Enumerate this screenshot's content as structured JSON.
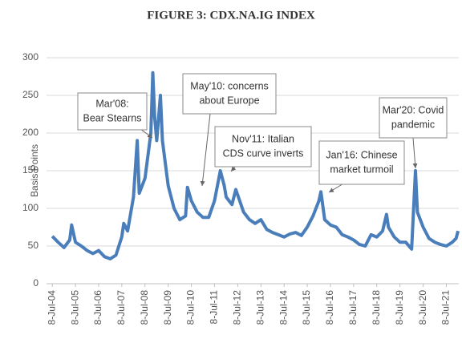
{
  "chart_data": {
    "type": "line",
    "title": "FIGURE 3:  CDX.NA.IG INDEX",
    "y_label": "Basis  Points",
    "x": [
      "2004-07-08",
      "2004-10-08",
      "2005-01-08",
      "2005-04-08",
      "2005-05-08",
      "2005-07-08",
      "2005-10-08",
      "2006-01-08",
      "2006-04-08",
      "2006-07-08",
      "2006-10-08",
      "2007-01-08",
      "2007-04-08",
      "2007-07-08",
      "2007-08-08",
      "2007-10-08",
      "2008-01-08",
      "2008-03-08",
      "2008-04-08",
      "2008-07-08",
      "2008-10-08",
      "2008-11-08",
      "2008-12-08",
      "2009-01-08",
      "2009-03-08",
      "2009-04-08",
      "2009-07-08",
      "2009-10-08",
      "2010-01-08",
      "2010-04-08",
      "2010-05-08",
      "2010-07-08",
      "2010-10-08",
      "2011-01-08",
      "2011-04-08",
      "2011-07-08",
      "2011-10-08",
      "2011-12-08",
      "2012-01-08",
      "2012-04-08",
      "2012-06-08",
      "2012-10-08",
      "2013-01-08",
      "2013-04-08",
      "2013-07-08",
      "2013-10-08",
      "2014-01-08",
      "2014-04-08",
      "2014-07-08",
      "2014-10-08",
      "2015-01-08",
      "2015-04-08",
      "2015-07-08",
      "2015-10-08",
      "2016-01-08",
      "2016-02-08",
      "2016-04-08",
      "2016-07-08",
      "2016-10-08",
      "2017-01-08",
      "2017-04-08",
      "2017-07-08",
      "2017-10-08",
      "2018-01-08",
      "2018-04-08",
      "2018-07-08",
      "2018-10-08",
      "2018-12-08",
      "2019-01-08",
      "2019-04-08",
      "2019-07-08",
      "2019-10-08",
      "2020-01-08",
      "2020-03-08",
      "2020-04-08",
      "2020-07-08",
      "2020-10-08",
      "2021-01-08",
      "2021-04-08",
      "2021-07-08",
      "2021-10-08",
      "2021-12-08",
      "2022-01-08"
    ],
    "series": [
      {
        "name": "CDX.NA.IG",
        "color": "#4a7ebb",
        "values": [
          63,
          55,
          48,
          58,
          78,
          55,
          50,
          44,
          40,
          44,
          36,
          33,
          38,
          62,
          80,
          70,
          115,
          190,
          120,
          140,
          200,
          280,
          220,
          190,
          250,
          190,
          130,
          100,
          85,
          90,
          128,
          110,
          95,
          88,
          88,
          110,
          150,
          130,
          115,
          105,
          125,
          95,
          85,
          80,
          85,
          72,
          68,
          65,
          62,
          66,
          68,
          64,
          75,
          90,
          110,
          122,
          85,
          78,
          75,
          65,
          62,
          58,
          52,
          50,
          65,
          62,
          70,
          92,
          75,
          62,
          55,
          55,
          46,
          150,
          95,
          75,
          60,
          55,
          52,
          50,
          55,
          60,
          70
        ]
      }
    ],
    "xlim": [
      "2004-04-08",
      "2022-01-20"
    ],
    "ylim": [
      0,
      300
    ],
    "yticks": [
      0,
      50,
      100,
      150,
      200,
      250,
      300
    ],
    "xticks": [
      {
        "value": "2004-07-08",
        "label": "8-Jul-04"
      },
      {
        "value": "2005-07-08",
        "label": "8-Jul-05"
      },
      {
        "value": "2006-07-08",
        "label": "8-Jul-06"
      },
      {
        "value": "2007-07-08",
        "label": "8-Jul-07"
      },
      {
        "value": "2008-07-08",
        "label": "8-Jul-08"
      },
      {
        "value": "2009-07-08",
        "label": "8-Jul-09"
      },
      {
        "value": "2010-07-08",
        "label": "8-Jul-10"
      },
      {
        "value": "2011-07-08",
        "label": "8-Jul-11"
      },
      {
        "value": "2012-07-08",
        "label": "8-Jul-12"
      },
      {
        "value": "2013-07-08",
        "label": "8-Jul-13"
      },
      {
        "value": "2014-07-08",
        "label": "8-Jul-14"
      },
      {
        "value": "2015-07-08",
        "label": "8-Jul-15"
      },
      {
        "value": "2016-07-08",
        "label": "8-Jul-16"
      },
      {
        "value": "2017-07-08",
        "label": "8-Jul-17"
      },
      {
        "value": "2018-07-08",
        "label": "8-Jul-18"
      },
      {
        "value": "2019-07-08",
        "label": "8-Jul-19"
      },
      {
        "value": "2020-07-08",
        "label": "8-Jul-20"
      },
      {
        "value": "2021-07-08",
        "label": "8-Jul-21"
      }
    ],
    "grid": true,
    "annotations": [
      {
        "lines": [
          "Mar'08:",
          "Bear Stearns"
        ]
      },
      {
        "lines": [
          "May'10: concerns",
          "about  Europe"
        ]
      },
      {
        "lines": [
          "Nov'11: Italian",
          "CDS curve inverts"
        ]
      },
      {
        "lines": [
          "Jan'16: Chinese",
          "market turmoil"
        ]
      },
      {
        "lines": [
          "Mar'20: Covid",
          "pandemic"
        ]
      }
    ]
  }
}
